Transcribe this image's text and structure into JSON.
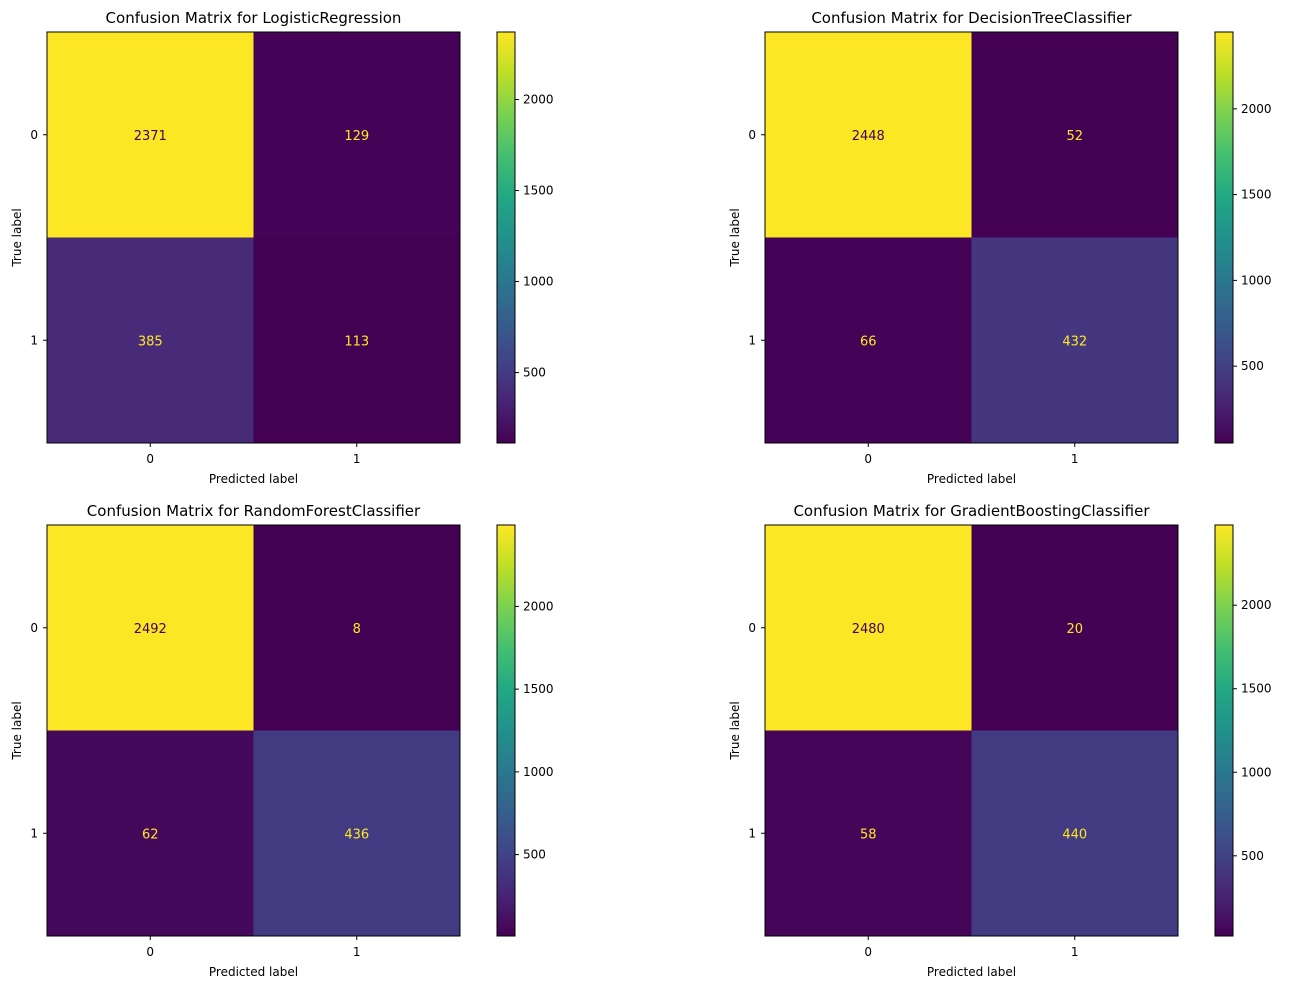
{
  "chart_data": [
    {
      "type": "heatmap",
      "title": "Confusion Matrix for LogisticRegression",
      "xlabel": "Predicted label",
      "ylabel": "True label",
      "x_ticks": [
        "0",
        "1"
      ],
      "y_ticks": [
        "0",
        "1"
      ],
      "values": [
        [
          2371,
          129
        ],
        [
          385,
          113
        ]
      ],
      "colormap": "viridis",
      "colorbar_range": [
        113,
        2371
      ],
      "colorbar_ticks": [
        500,
        1000,
        1500,
        2000
      ]
    },
    {
      "type": "heatmap",
      "title": "Confusion Matrix for DecisionTreeClassifier",
      "xlabel": "Predicted label",
      "ylabel": "True label",
      "x_ticks": [
        "0",
        "1"
      ],
      "y_ticks": [
        "0",
        "1"
      ],
      "values": [
        [
          2448,
          52
        ],
        [
          66,
          432
        ]
      ],
      "colormap": "viridis",
      "colorbar_range": [
        52,
        2448
      ],
      "colorbar_ticks": [
        500,
        1000,
        1500,
        2000
      ]
    },
    {
      "type": "heatmap",
      "title": "Confusion Matrix for RandomForestClassifier",
      "xlabel": "Predicted label",
      "ylabel": "True label",
      "x_ticks": [
        "0",
        "1"
      ],
      "y_ticks": [
        "0",
        "1"
      ],
      "values": [
        [
          2492,
          8
        ],
        [
          62,
          436
        ]
      ],
      "colormap": "viridis",
      "colorbar_range": [
        8,
        2492
      ],
      "colorbar_ticks": [
        500,
        1000,
        1500,
        2000
      ]
    },
    {
      "type": "heatmap",
      "title": "Confusion Matrix for GradientBoostingClassifier",
      "xlabel": "Predicted label",
      "ylabel": "True label",
      "x_ticks": [
        "0",
        "1"
      ],
      "y_ticks": [
        "0",
        "1"
      ],
      "values": [
        [
          2480,
          20
        ],
        [
          58,
          440
        ]
      ],
      "colormap": "viridis",
      "colorbar_range": [
        20,
        2480
      ],
      "colorbar_ticks": [
        500,
        1000,
        1500,
        2000
      ]
    }
  ],
  "colors": {
    "low": "#440154",
    "high": "#fde725",
    "text_on_dark": "#fde725",
    "text_on_light": "#440154"
  }
}
